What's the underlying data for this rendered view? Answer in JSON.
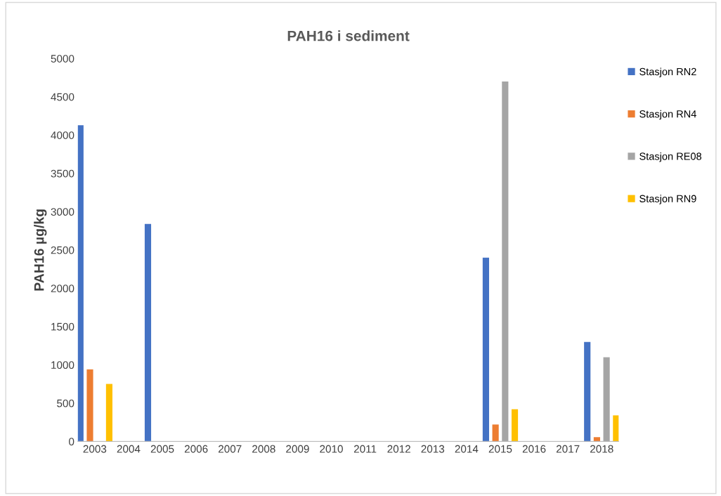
{
  "chart_data": {
    "type": "bar",
    "title": "PAH16 i sediment",
    "ylabel": "PAH16 µg/kg",
    "categories": [
      "2003",
      "2004",
      "2005",
      "2006",
      "2007",
      "2008",
      "2009",
      "2010",
      "2011",
      "2012",
      "2013",
      "2014",
      "2015",
      "2016",
      "2017",
      "2018"
    ],
    "series": [
      {
        "name": "Stasjon RN2",
        "color": "#4472c4",
        "values": [
          4130,
          null,
          2840,
          null,
          null,
          null,
          null,
          null,
          null,
          null,
          null,
          null,
          2400,
          null,
          null,
          1300
        ]
      },
      {
        "name": "Stasjon RN4",
        "color": "#ed7d31",
        "values": [
          940,
          null,
          null,
          null,
          null,
          null,
          null,
          null,
          null,
          null,
          null,
          null,
          220,
          null,
          null,
          55
        ]
      },
      {
        "name": "Stasjon RE08",
        "color": "#a5a5a5",
        "values": [
          null,
          null,
          null,
          null,
          null,
          null,
          null,
          null,
          null,
          null,
          null,
          null,
          4700,
          null,
          null,
          1100
        ]
      },
      {
        "name": "Stasjon RN9",
        "color": "#ffc000",
        "values": [
          750,
          null,
          null,
          null,
          null,
          null,
          null,
          null,
          null,
          null,
          null,
          null,
          420,
          null,
          null,
          340
        ]
      }
    ],
    "ylim": [
      0,
      5000
    ],
    "yticks": [
      0,
      500,
      1000,
      1500,
      2000,
      2500,
      3000,
      3500,
      4000,
      4500,
      5000
    ],
    "grid": false,
    "legend": "right"
  }
}
